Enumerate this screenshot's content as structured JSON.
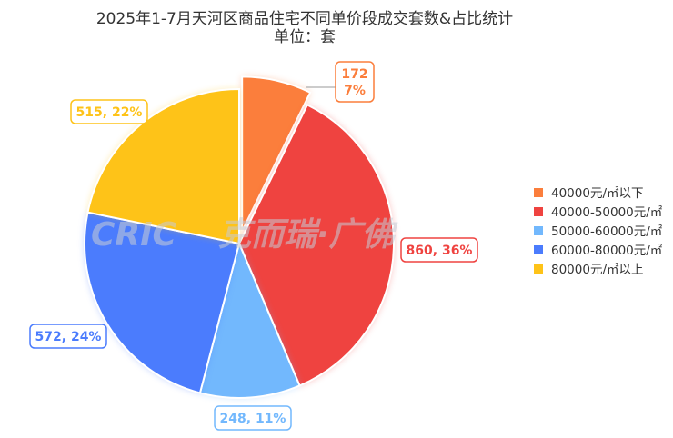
{
  "chart_data": {
    "type": "pie",
    "title": "2025年1-7月天河区商品住宅不同单价段成交套数&占比统计",
    "subtitle": "单位：套",
    "legend_position": "right",
    "categories": [
      "40000元/㎡以下",
      "40000-50000元/㎡",
      "50000-60000元/㎡",
      "60000-80000元/㎡",
      "80000元/㎡以上"
    ],
    "values": [
      172,
      860,
      248,
      572,
      515
    ],
    "percents": [
      "7%",
      "36%",
      "11%",
      "24%",
      "22%"
    ],
    "colors": [
      "#fb7e3c",
      "#ef4340",
      "#72b8fd",
      "#4b7cfd",
      "#fec318"
    ],
    "exploded_index": 0,
    "data_labels": [
      "172\n7%",
      "860, 36%",
      "248, 11%",
      "572, 24%",
      "515, 22%"
    ]
  },
  "watermark": {
    "text_latin": "CRIC",
    "text_cn": "克而瑞·广佛"
  }
}
